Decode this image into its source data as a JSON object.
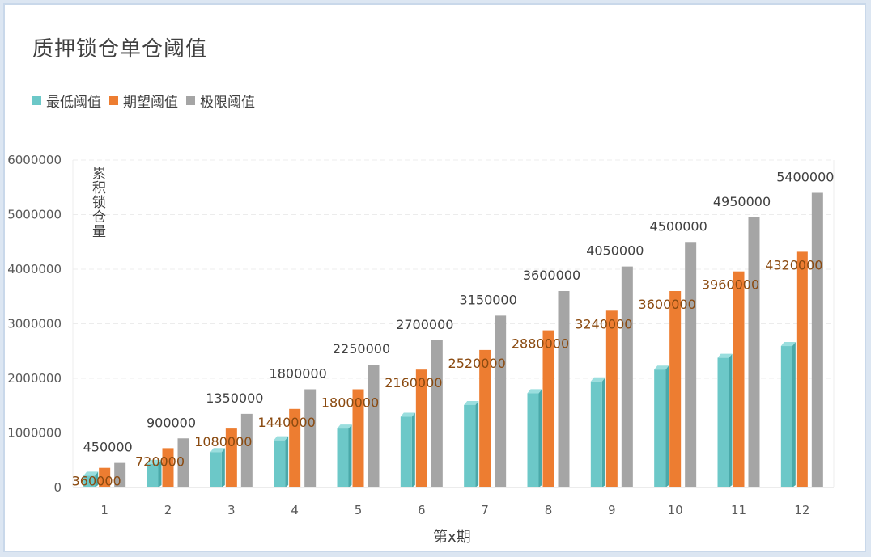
{
  "chart_data": {
    "type": "bar",
    "title": "质押锁仓单仓阈值",
    "xlabel": "第x期",
    "ylabel": "累积锁仓量",
    "ylim": [
      0,
      6000000
    ],
    "yticks": [
      0,
      1000000,
      2000000,
      3000000,
      4000000,
      5000000,
      6000000
    ],
    "grid": true,
    "legend_position": "top-left",
    "categories": [
      "1",
      "2",
      "3",
      "4",
      "5",
      "6",
      "7",
      "8",
      "9",
      "10",
      "11",
      "12"
    ],
    "series": [
      {
        "name": "最低阈值",
        "color": "#6cc8c8",
        "values": [
          216000,
          432000,
          648000,
          864000,
          1080000,
          1296000,
          1512000,
          1728000,
          1944000,
          2160000,
          2376000,
          2592000
        ]
      },
      {
        "name": "期望阈值",
        "color": "#ed7d31",
        "values": [
          360000,
          720000,
          1080000,
          1440000,
          1800000,
          2160000,
          2520000,
          2880000,
          3240000,
          3600000,
          3960000,
          4320000
        ]
      },
      {
        "name": "极限阈值",
        "color": "#a5a5a5",
        "values": [
          450000,
          900000,
          1350000,
          1800000,
          2250000,
          2700000,
          3150000,
          3600000,
          4050000,
          4500000,
          4950000,
          5400000
        ]
      }
    ],
    "data_labels_series": [
      1,
      2
    ]
  }
}
